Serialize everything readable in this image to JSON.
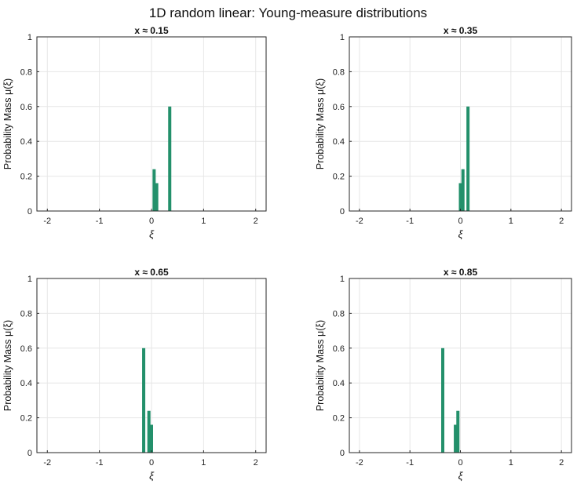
{
  "figure": {
    "title": "1D random linear: Young-measure distributions"
  },
  "colors": {
    "bar": "#23906b",
    "grid": "#e6e6e6",
    "axis": "#262626"
  },
  "chart_data": [
    {
      "type": "bar",
      "title": "x  ≈ 0.15",
      "xlabel": "ξ",
      "ylabel": "Probability Mass  μ(ξ)",
      "xlim": [
        -2.2,
        2.2
      ],
      "ylim": [
        0,
        1
      ],
      "xticks": [
        "-2",
        "-1",
        "0",
        "1",
        "2"
      ],
      "yticks": [
        "0",
        "0.2",
        "0.4",
        "0.6",
        "0.8",
        "1"
      ],
      "x": [
        0.05,
        0.1,
        0.35
      ],
      "values": [
        0.24,
        0.16,
        0.6
      ],
      "grid": true
    },
    {
      "type": "bar",
      "title": "x  ≈ 0.35",
      "xlabel": "ξ",
      "ylabel": "Probability Mass  μ(ξ)",
      "xlim": [
        -2.2,
        2.2
      ],
      "ylim": [
        0,
        1
      ],
      "xticks": [
        "-2",
        "-1",
        "0",
        "1",
        "2"
      ],
      "yticks": [
        "0",
        "0.2",
        "0.4",
        "0.6",
        "0.8",
        "1"
      ],
      "x": [
        0.0,
        0.05,
        0.15
      ],
      "values": [
        0.16,
        0.24,
        0.6
      ],
      "grid": true
    },
    {
      "type": "bar",
      "title": "x  ≈ 0.65",
      "xlabel": "ξ",
      "ylabel": "Probability Mass  μ(ξ)",
      "xlim": [
        -2.2,
        2.2
      ],
      "ylim": [
        0,
        1
      ],
      "xticks": [
        "-2",
        "-1",
        "0",
        "1",
        "2"
      ],
      "yticks": [
        "0",
        "0.2",
        "0.4",
        "0.6",
        "0.8",
        "1"
      ],
      "x": [
        -0.15,
        -0.05,
        0.0
      ],
      "values": [
        0.6,
        0.24,
        0.16
      ],
      "grid": true
    },
    {
      "type": "bar",
      "title": "x  ≈ 0.85",
      "xlabel": "ξ",
      "ylabel": "Probability Mass  μ(ξ)",
      "xlim": [
        -2.2,
        2.2
      ],
      "ylim": [
        0,
        1
      ],
      "xticks": [
        "-2",
        "-1",
        "0",
        "1",
        "2"
      ],
      "yticks": [
        "0",
        "0.2",
        "0.4",
        "0.6",
        "0.8",
        "1"
      ],
      "x": [
        -0.35,
        -0.1,
        -0.05
      ],
      "values": [
        0.6,
        0.16,
        0.24
      ],
      "grid": true
    }
  ]
}
